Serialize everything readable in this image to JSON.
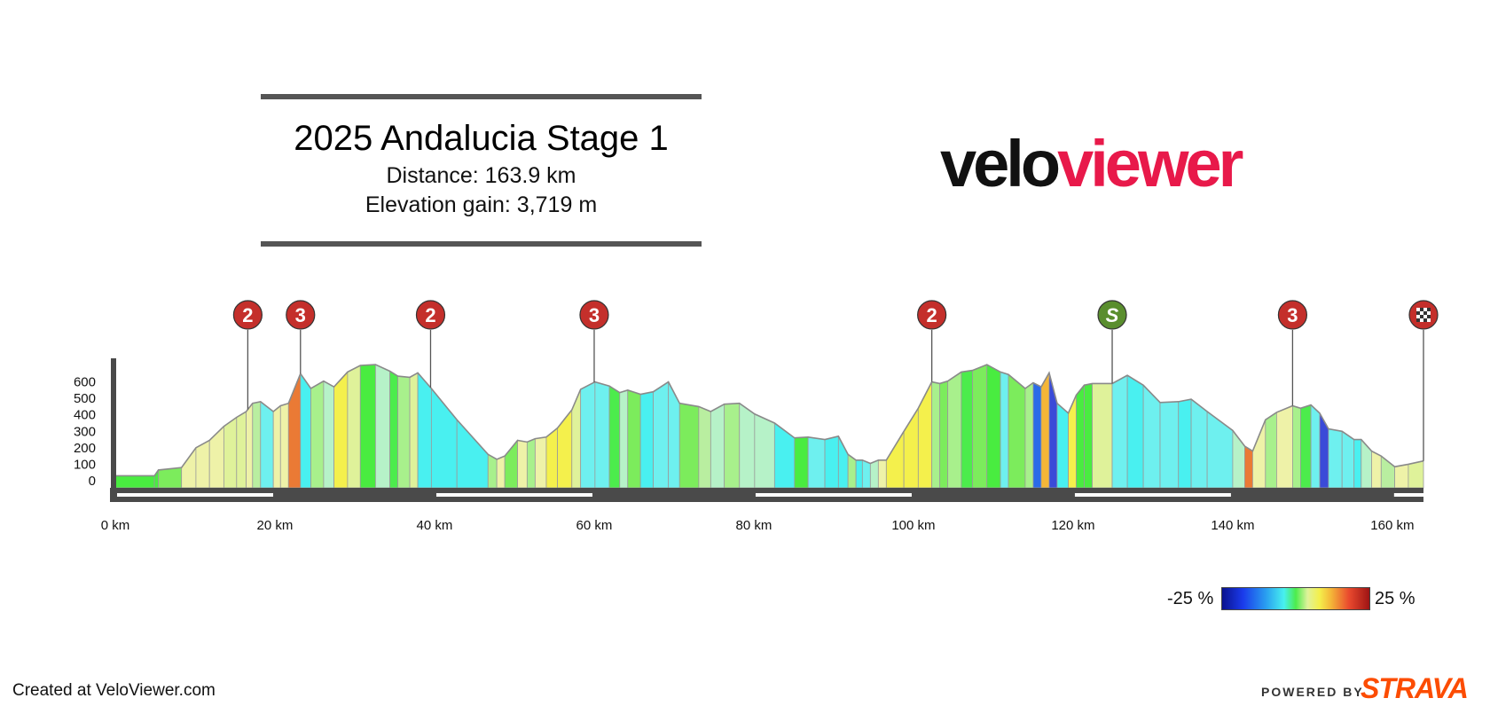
{
  "header": {
    "title": "2025 Andalucia Stage 1",
    "distance": "Distance: 163.9 km",
    "elevation_gain": "Elevation gain: 3,719 m"
  },
  "logo": {
    "left": "velo",
    "right": "viewer",
    "colors": {
      "velo": "#111111",
      "viewer": "#e8194a"
    }
  },
  "footer": {
    "created": "Created at VeloViewer.com",
    "powered_by": "POWERED BY",
    "strava": "STRAVA"
  },
  "legend": {
    "min_label": "-25 %",
    "max_label": "25 %"
  },
  "markers": [
    {
      "km": 16.6,
      "label": "2",
      "type": "climb"
    },
    {
      "km": 23.2,
      "label": "3",
      "type": "climb"
    },
    {
      "km": 39.5,
      "label": "2",
      "type": "climb"
    },
    {
      "km": 60.0,
      "label": "3",
      "type": "climb"
    },
    {
      "km": 102.3,
      "label": "2",
      "type": "climb"
    },
    {
      "km": 124.9,
      "label": "S",
      "type": "sprint"
    },
    {
      "km": 147.5,
      "label": "3",
      "type": "climb"
    },
    {
      "km": 163.9,
      "label": "finish",
      "type": "finish"
    }
  ],
  "marker_colors": {
    "climb": "#c42f2b",
    "sprint": "#5a8e2e",
    "finish": "#c42f2b"
  },
  "chart_data": {
    "type": "area",
    "xlabel": "",
    "ylabel": "",
    "xlim": [
      0,
      163.9
    ],
    "ylim": [
      -50,
      760
    ],
    "x_ticks": [
      0,
      20,
      40,
      60,
      80,
      100,
      120,
      140,
      160
    ],
    "x_tick_labels": [
      "0 km",
      "20 km",
      "40 km",
      "60 km",
      "80 km",
      "100 km",
      "120 km",
      "140 km",
      "160 km"
    ],
    "y_ticks": [
      0,
      100,
      200,
      300,
      400,
      500,
      600
    ],
    "y_tick_labels": [
      "0",
      "100",
      "200",
      "300",
      "400",
      "500",
      "600"
    ],
    "series": [
      {
        "distance_km": [
          0,
          4.9,
          5.4,
          8.3,
          10.1,
          11.8,
          13.6,
          15.2,
          16.4,
          17.2,
          18.2,
          19.8,
          20.7,
          21.7,
          23.2,
          24.5,
          26.1,
          27.4,
          29.1,
          30.7,
          32.6,
          34.4,
          35.4,
          36.9,
          37.9,
          39.6,
          42.8,
          46.7,
          47.8,
          48.8,
          50.4,
          51.6,
          52.6,
          54.0,
          55.4,
          57.2,
          58.3,
          60.1,
          61.9,
          63.2,
          64.2,
          65.8,
          67.4,
          69.3,
          70.7,
          73.1,
          74.6,
          76.3,
          78.2,
          80.1,
          82.6,
          85.1,
          86.8,
          88.9,
          90.6,
          91.8,
          92.8,
          93.6,
          94.6,
          95.6,
          96.6,
          98.8,
          100.6,
          102.3,
          103.3,
          104.3,
          106.0,
          107.4,
          109.2,
          110.9,
          111.9,
          114.0,
          115.0,
          116.0,
          117.0,
          118.0,
          119.4,
          120.4,
          121.4,
          122.4,
          124.9,
          126.8,
          128.8,
          130.9,
          133.2,
          134.8,
          136.8,
          140.0,
          141.5,
          142.5,
          144.1,
          145.5,
          147.5,
          148.5,
          149.8,
          150.9,
          152.0,
          153.7,
          155.2,
          156.1,
          157.4,
          158.6,
          160.3,
          162.0,
          163.9
        ],
        "elevation_m": [
          30,
          30,
          65,
          80,
          200,
          245,
          330,
          385,
          420,
          470,
          480,
          420,
          455,
          470,
          650,
          560,
          605,
          570,
          660,
          700,
          705,
          665,
          635,
          628,
          655,
          560,
          370,
          160,
          130,
          150,
          245,
          235,
          255,
          265,
          320,
          430,
          555,
          600,
          575,
          535,
          550,
          525,
          540,
          600,
          470,
          450,
          420,
          465,
          470,
          405,
          350,
          260,
          265,
          250,
          270,
          160,
          125,
          125,
          105,
          125,
          125,
          300,
          440,
          600,
          590,
          605,
          660,
          670,
          705,
          660,
          645,
          560,
          595,
          570,
          655,
          470,
          410,
          520,
          580,
          590,
          590,
          640,
          580,
          475,
          480,
          495,
          420,
          305,
          210,
          180,
          370,
          415,
          455,
          440,
          460,
          410,
          315,
          300,
          250,
          250,
          180,
          150,
          85,
          100,
          120
        ]
      }
    ],
    "segment_colors": [
      "#49ec40",
      "#49ec40",
      "#7cec5c",
      "#eef2a8",
      "#eef2a8",
      "#eef2a8",
      "#dff29a",
      "#dff29a",
      "#eef2a8",
      "#b9eea0",
      "#6ef0ef",
      "#eef2a8",
      "#eef2a8",
      "#ea7a35",
      "#49f0f0",
      "#a8f08c",
      "#b6f2c8",
      "#f4f04c",
      "#dff29a",
      "#49ec40",
      "#b6f2c8",
      "#4cec4c",
      "#a8f08c",
      "#dff29a",
      "#49f0f0",
      "#49f0f0",
      "#49f0f0",
      "#a8f08c",
      "#eef2a8",
      "#7cec5c",
      "#eef2a8",
      "#a8f08c",
      "#eef2a8",
      "#f4f04c",
      "#f4f04c",
      "#dff29a",
      "#6ef0ef",
      "#6ef0ef",
      "#4cec4c",
      "#b6f2c8",
      "#7cec5c",
      "#49f0f0",
      "#6ef0ef",
      "#6ef0ef",
      "#7cec5c",
      "#b9eea0",
      "#b6f2c8",
      "#a8f08c",
      "#b6f2c8",
      "#b6f2c8",
      "#49f0f0",
      "#49ec40",
      "#6ef0ef",
      "#49f0f0",
      "#49f0f0",
      "#a8f08c",
      "#49f0f0",
      "#6ef0ef",
      "#b6f2c8",
      "#eef2a8",
      "#f4f04c",
      "#f4f04c",
      "#f4f04c",
      "#a8f08c",
      "#7cec5c",
      "#a8f08c",
      "#4cec4c",
      "#7cec5c",
      "#49ec40",
      "#6ef0ef",
      "#7cec5c",
      "#a8f08c",
      "#2a6be8",
      "#f4b638",
      "#3a4ad8",
      "#49f0f0",
      "#f4f04c",
      "#49ec40",
      "#49ec40",
      "#dff29a",
      "#6ef0ef",
      "#49f0f0",
      "#6ef0ef",
      "#6ef0ef",
      "#49f0f0",
      "#6ef0ef",
      "#6ef0ef",
      "#b6f2c8",
      "#ea7a35",
      "#eef2a8",
      "#a8f08c",
      "#eef2a8",
      "#a8f08c",
      "#4cec4c",
      "#6ef0ef",
      "#3a4ad8",
      "#6ef0ef",
      "#6ef0ef",
      "#49f0f0",
      "#b6f2c8",
      "#eef2a8",
      "#b9eea0",
      "#eef2a8",
      "#dff29a"
    ],
    "grid": false,
    "legend": "bottom-right"
  }
}
